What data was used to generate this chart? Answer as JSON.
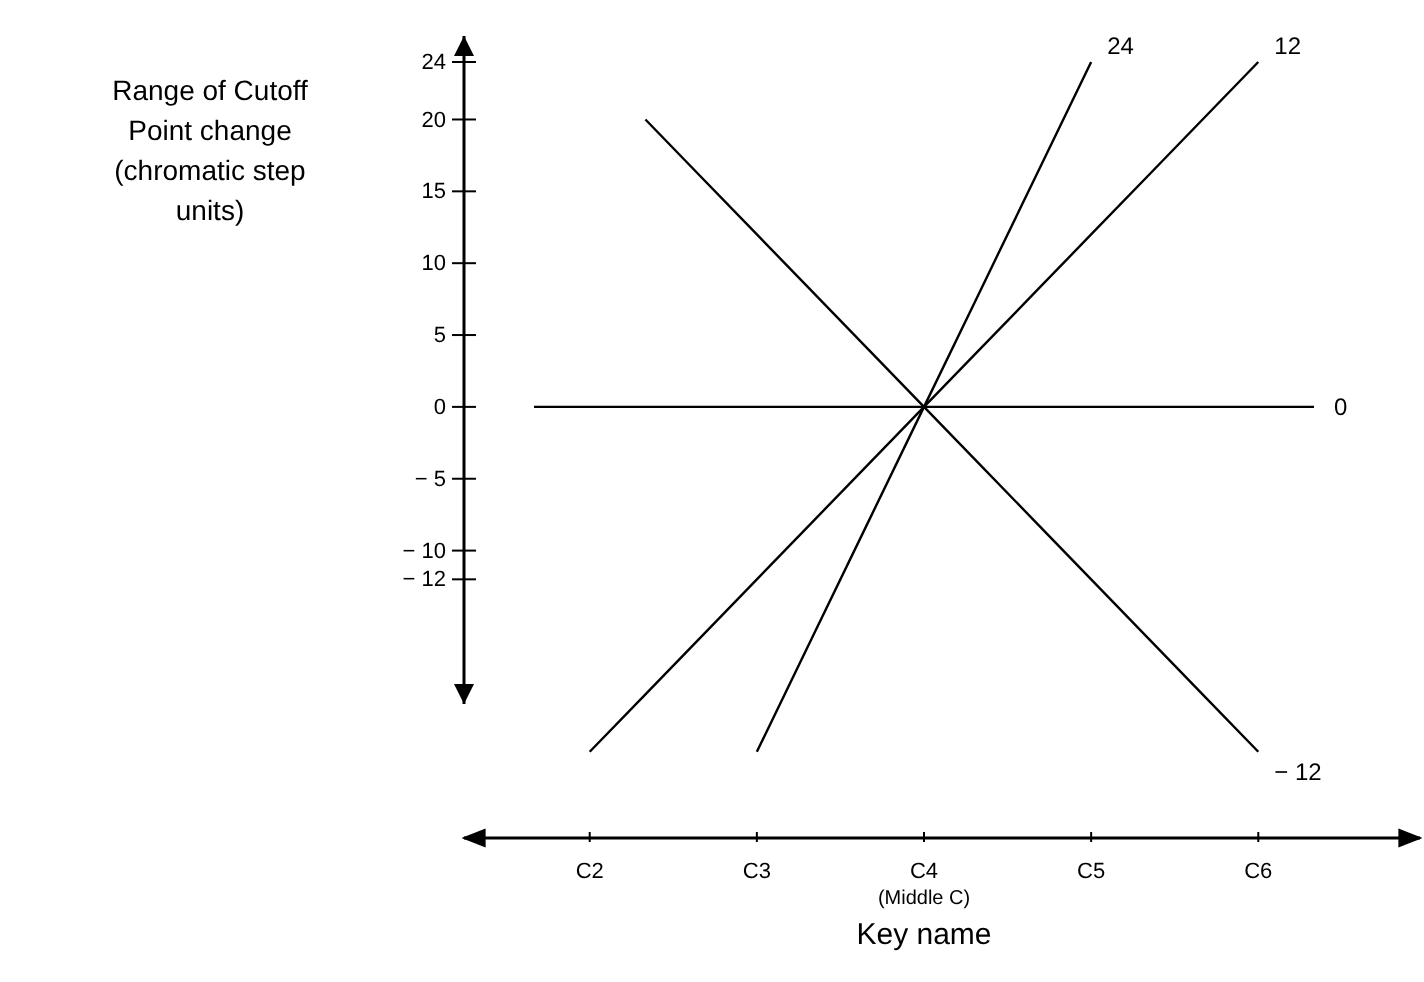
{
  "chart_data": {
    "type": "line",
    "xlabel": "Key name",
    "ylabel": "Range of Cutoff Point change (chromatic step units)",
    "categories": [
      null,
      "C2",
      null,
      null,
      "C3",
      null,
      null,
      "C4 (Middle C)",
      null,
      null,
      "C5",
      null,
      null,
      "C6",
      null
    ],
    "ylim": [
      -30,
      24
    ],
    "yticks": [
      24,
      20,
      15,
      10,
      5,
      0,
      -5,
      -10,
      -12
    ],
    "grid": false,
    "marker": "none",
    "line_style": "solid",
    "legend": false,
    "series": [
      {
        "name": "24",
        "color": "#000000",
        "values": [
          null,
          null,
          null,
          null,
          -24,
          -16,
          -8,
          0,
          8,
          16,
          24,
          null,
          null,
          null,
          null
        ]
      },
      {
        "name": "12",
        "color": "#000000",
        "values": [
          null,
          -24,
          -20,
          -16,
          -12,
          -8,
          -4,
          0,
          4,
          8,
          12,
          16,
          20,
          24,
          null
        ]
      },
      {
        "name": "0",
        "color": "#000000",
        "values": [
          0,
          0,
          0,
          0,
          0,
          0,
          0,
          0,
          0,
          0,
          0,
          0,
          0,
          0,
          0
        ]
      },
      {
        "name": "− 12",
        "color": "#000000",
        "values": [
          null,
          null,
          20,
          16,
          12,
          8,
          4,
          0,
          -4,
          -8,
          -12,
          -16,
          -20,
          -24,
          null
        ]
      }
    ]
  }
}
